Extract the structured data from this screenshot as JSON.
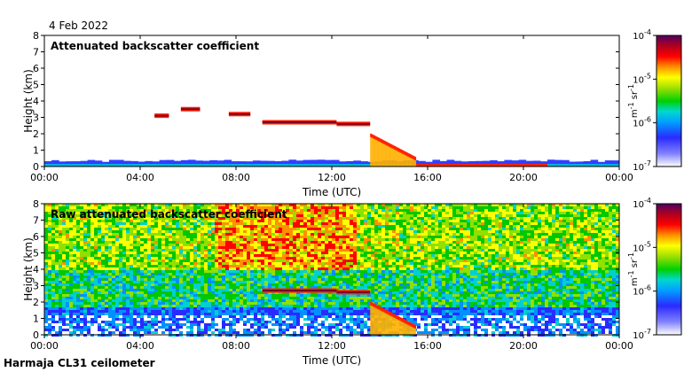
{
  "date_label": "4 Feb 2022",
  "footer_label": "Harmaja CL31 ceilometer",
  "chart_data": [
    {
      "type": "heatmap",
      "title": "Attenuated backscatter coefficient",
      "xlabel": "Time (UTC)",
      "ylabel": "Height (km)",
      "xlim": [
        0,
        24
      ],
      "ylim": [
        0,
        8
      ],
      "xticks": [
        0,
        4,
        8,
        12,
        16,
        20,
        24
      ],
      "xtick_labels": [
        "00:00",
        "04:00",
        "08:00",
        "12:00",
        "16:00",
        "20:00",
        "00:00"
      ],
      "yticks": [
        0,
        1,
        2,
        3,
        4,
        5,
        6,
        7,
        8
      ],
      "ytick_labels": [
        "0",
        "1",
        "2",
        "3",
        "4",
        "5",
        "6",
        "7",
        "8"
      ],
      "features": [
        {
          "kind": "surface_layer",
          "from_h": 0,
          "to_h": 24,
          "top_km": 0.35
        },
        {
          "kind": "cloud_layer",
          "from_h": 9.1,
          "to_h": 12.2,
          "height_km": 2.7
        },
        {
          "kind": "cloud_layer",
          "from_h": 12.2,
          "to_h": 13.6,
          "height_km": 2.6
        },
        {
          "kind": "cloud_layer",
          "from_h": 5.7,
          "to_h": 6.5,
          "height_km": 3.5
        },
        {
          "kind": "cloud_layer",
          "from_h": 7.7,
          "to_h": 8.6,
          "height_km": 3.2
        },
        {
          "kind": "cloud_layer",
          "from_h": 4.6,
          "to_h": 5.2,
          "height_km": 3.1
        },
        {
          "kind": "descending_layer",
          "from_h": 13.6,
          "to_h": 15.5,
          "from_km": 1.9,
          "to_km": 0.45
        }
      ]
    },
    {
      "type": "heatmap",
      "title": "Raw attenuated backscatter coefficient",
      "xlabel": "Time (UTC)",
      "ylabel": "Height (km)",
      "xlim": [
        0,
        24
      ],
      "ylim": [
        0,
        8
      ],
      "xticks": [
        0,
        4,
        8,
        12,
        16,
        20,
        24
      ],
      "xtick_labels": [
        "00:00",
        "04:00",
        "08:00",
        "12:00",
        "16:00",
        "20:00",
        "00:00"
      ],
      "yticks": [
        0,
        1,
        2,
        3,
        4,
        5,
        6,
        7,
        8
      ],
      "ytick_labels": [
        "0",
        "1",
        "2",
        "3",
        "4",
        "5",
        "6",
        "7",
        "8"
      ],
      "features": [
        {
          "kind": "surface_layer",
          "from_h": 0,
          "to_h": 24,
          "top_km": 0.35
        },
        {
          "kind": "noise_background",
          "note": "random speckle"
        },
        {
          "kind": "cloud_layer",
          "from_h": 9.1,
          "to_h": 12.2,
          "height_km": 2.7
        },
        {
          "kind": "cloud_layer",
          "from_h": 12.2,
          "to_h": 13.6,
          "height_km": 2.6
        },
        {
          "kind": "descending_layer",
          "from_h": 13.6,
          "to_h": 15.5,
          "from_km": 1.9,
          "to_km": 0.45
        }
      ]
    }
  ],
  "colorbar": {
    "scale": "log",
    "range": [
      1e-07,
      0.0001
    ],
    "tick_labels": [
      "10",
      "10",
      "10",
      "10"
    ],
    "tick_exponents": [
      "-7",
      "-6",
      "-5",
      "-4"
    ],
    "unit_parts": [
      "m",
      "-1",
      " sr",
      "-1"
    ]
  }
}
